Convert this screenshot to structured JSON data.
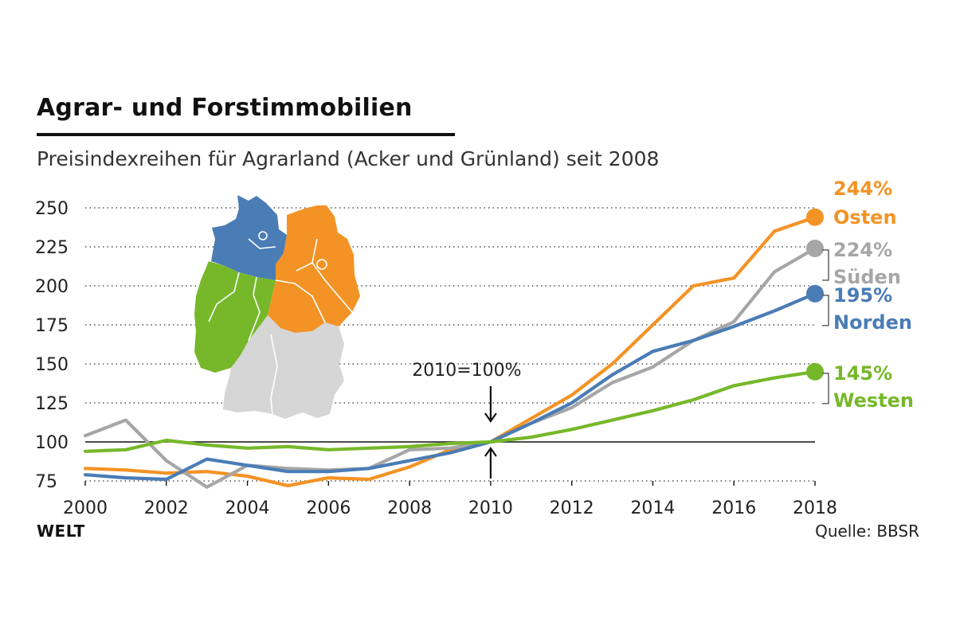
{
  "header": {
    "title": "Agrar- und Forstimmobilien",
    "subtitle": "Preisindexreihen für Agrarland (Acker und Grünland) seit 2008"
  },
  "footer": {
    "logo": "WELT",
    "source": "Quelle:  BBSR"
  },
  "chart_data": {
    "type": "line",
    "title": "Agrar- und Forstimmobilien",
    "subtitle": "Preisindexreihen für Agrarland (Acker und Grünland) seit 2008",
    "xlabel": "",
    "ylabel": "",
    "x": [
      2000,
      2001,
      2002,
      2003,
      2004,
      2005,
      2006,
      2007,
      2008,
      2009,
      2010,
      2011,
      2012,
      2013,
      2014,
      2015,
      2016,
      2017,
      2018
    ],
    "xlim": [
      2000,
      2018
    ],
    "ylim": [
      75,
      250
    ],
    "x_ticks": [
      "2000",
      "2002",
      "2004",
      "2006",
      "2008",
      "2010",
      "2012",
      "2014",
      "2016",
      "2018"
    ],
    "y_ticks": [
      "75",
      "100",
      "125",
      "150",
      "175",
      "200",
      "225",
      "250"
    ],
    "grid": "horizontal dotted",
    "reference_line": 100,
    "annotation": "2010=100%",
    "series": [
      {
        "name": "Osten",
        "color": "#f39325",
        "end_label": "244%",
        "values": [
          83,
          82,
          80,
          81,
          78,
          72,
          77,
          76,
          84,
          95,
          100,
          115,
          130,
          150,
          175,
          200,
          205,
          235,
          244
        ]
      },
      {
        "name": "Süden",
        "color": "#a6a6a6",
        "end_label": "224%",
        "values": [
          104,
          114,
          88,
          71,
          85,
          83,
          82,
          83,
          95,
          96,
          100,
          112,
          122,
          138,
          148,
          165,
          177,
          209,
          224
        ]
      },
      {
        "name": "Norden",
        "color": "#4a7cb5",
        "end_label": "195%",
        "values": [
          79,
          77,
          76,
          89,
          85,
          81,
          81,
          83,
          88,
          93,
          100,
          112,
          125,
          143,
          158,
          165,
          174,
          184,
          195
        ]
      },
      {
        "name": "Westen",
        "color": "#76b82a",
        "end_label": "145%",
        "values": [
          94,
          95,
          101,
          98,
          96,
          97,
          95,
          96,
          97,
          99,
          100,
          103,
          108,
          114,
          120,
          127,
          136,
          141,
          145
        ]
      }
    ]
  }
}
